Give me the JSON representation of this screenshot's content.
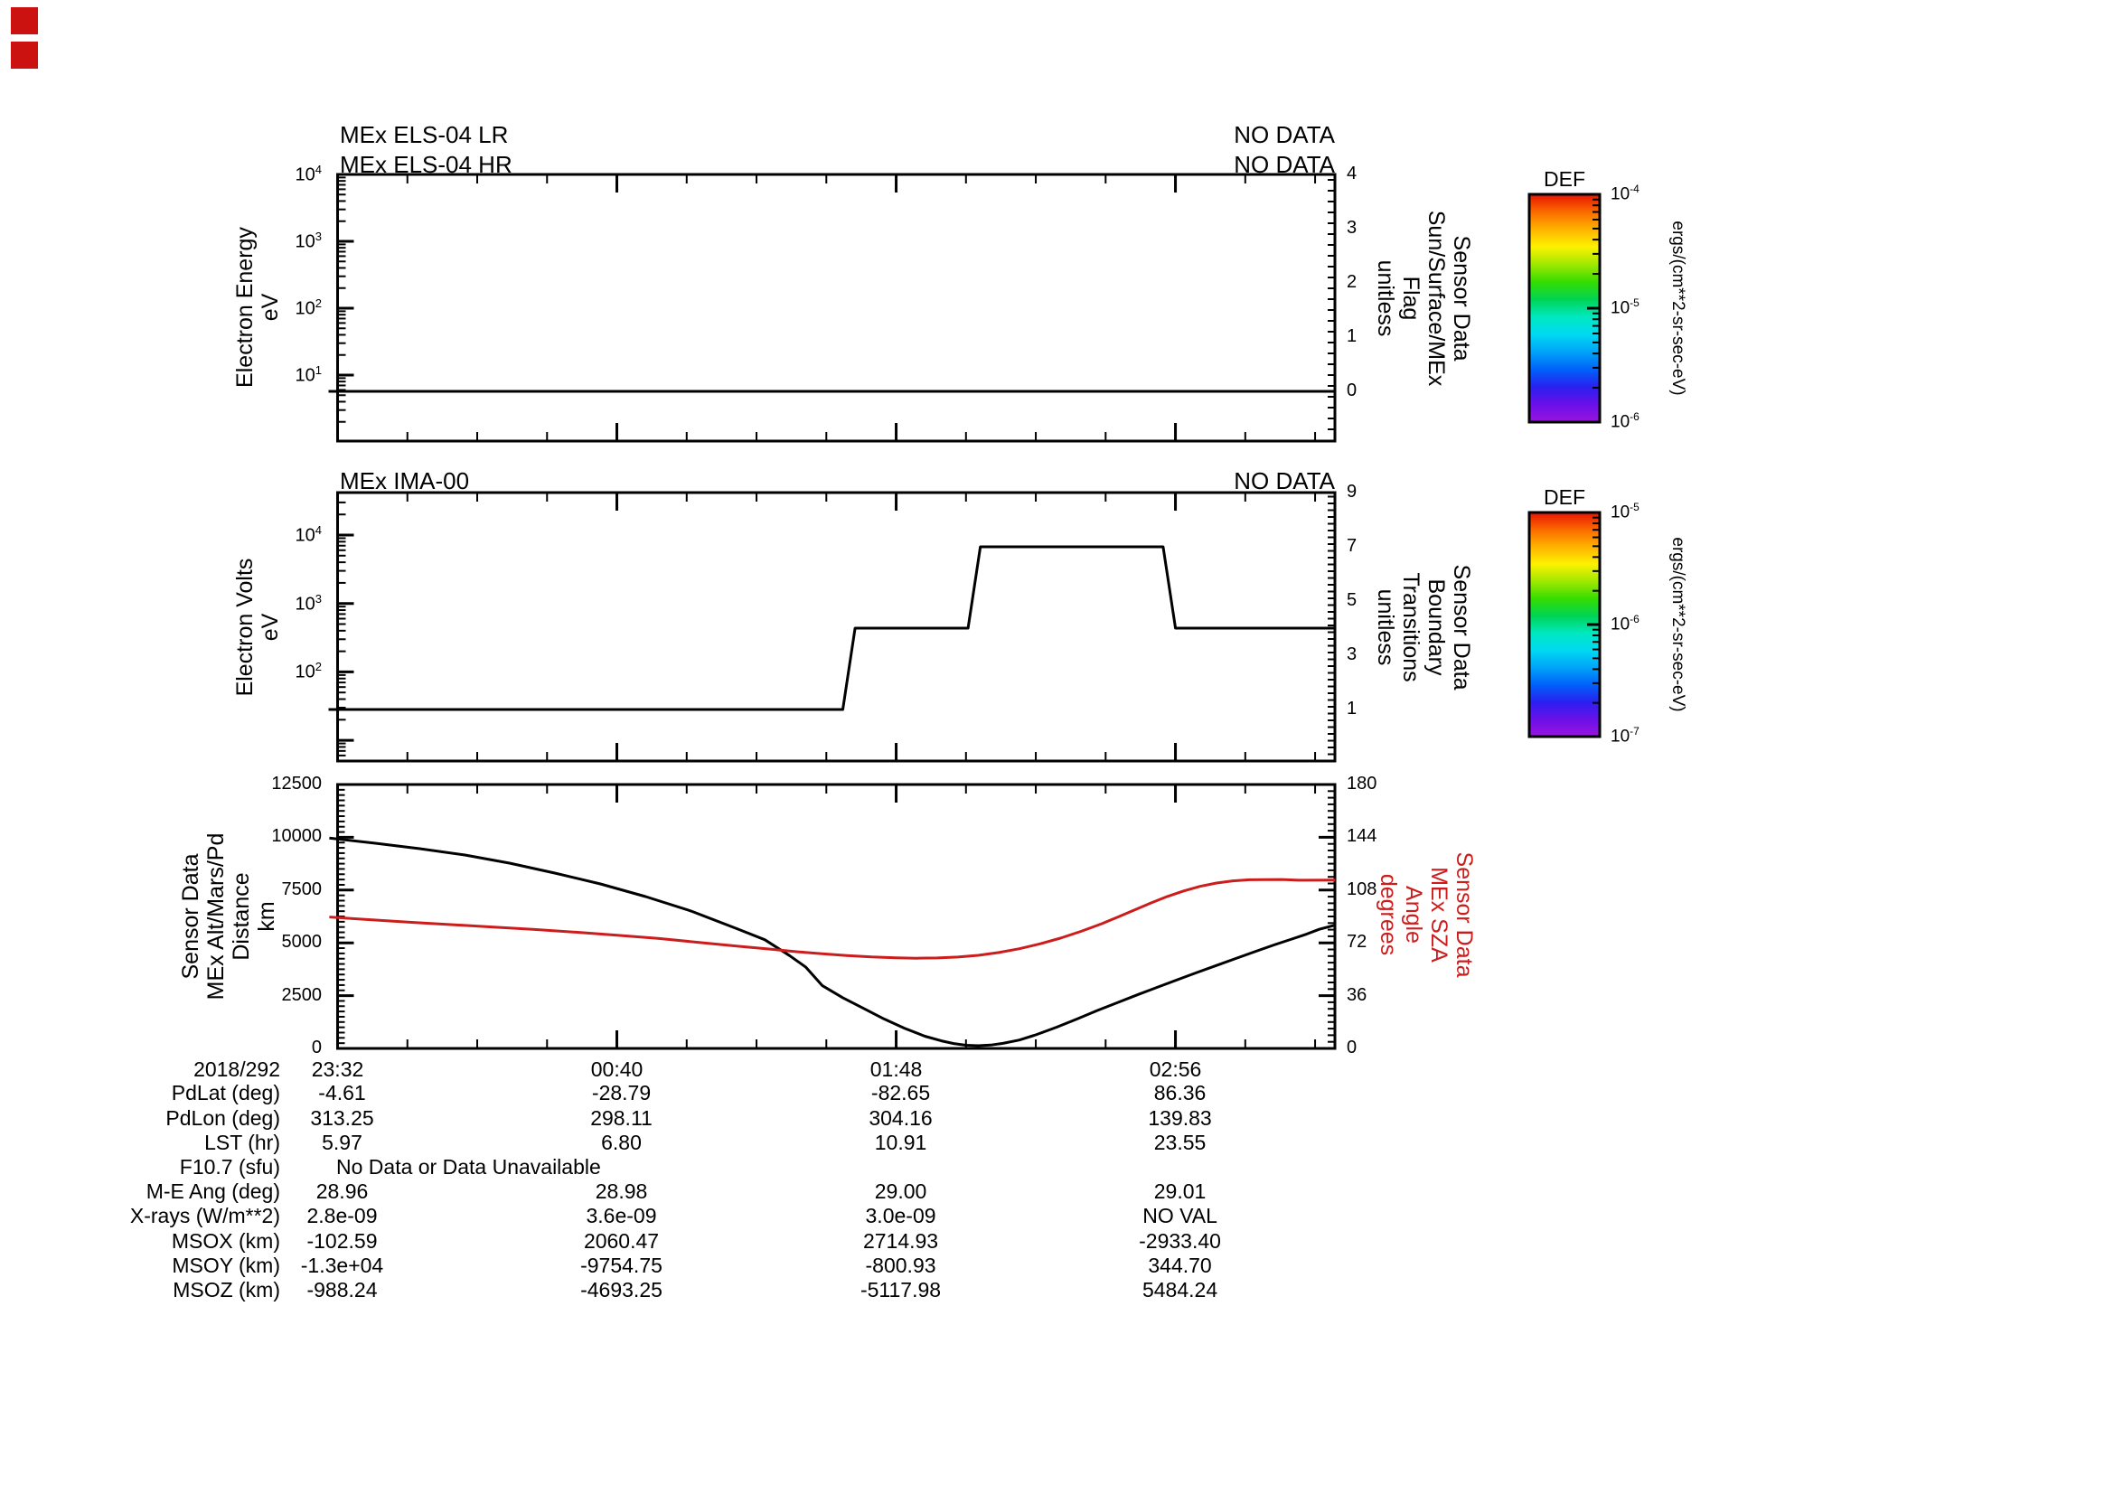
{
  "panels": {
    "top": {
      "titles": [
        "MEx ELS-04 LR",
        "MEx ELS-04 HR"
      ],
      "no_data": [
        "NO DATA",
        "NO DATA"
      ],
      "left_axis_label_lines": [
        "Electron Energy",
        "eV"
      ],
      "right_axis_label_lines": [
        "Sensor Data",
        "Sun/Surface/MEx",
        "Flag",
        "unitless"
      ],
      "left_tick_exponents": [
        "4",
        "3",
        "2",
        "1"
      ],
      "right_tick_labels": [
        "4",
        "3",
        "2",
        "1",
        "0"
      ]
    },
    "middle": {
      "title": "MEx IMA-00",
      "no_data": "NO DATA",
      "left_axis_label_lines": [
        "Electron Volts",
        "eV"
      ],
      "right_axis_label_lines": [
        "Sensor Data",
        "Boundary",
        "Transitions",
        "unitless"
      ],
      "left_tick_exponents": [
        "4",
        "3",
        "2"
      ],
      "right_tick_labels": [
        "9",
        "7",
        "5",
        "3",
        "1"
      ]
    },
    "bottom": {
      "left_axis_label_lines": [
        "Sensor Data",
        "MEx Alt/Mars/Pd",
        "Distance",
        "km"
      ],
      "right_axis_label_lines": [
        "Sensor Data",
        "MEx SZA",
        "Angle",
        "degrees"
      ],
      "left_tick_labels": [
        "12500",
        "10000",
        "7500",
        "5000",
        "2500",
        "0"
      ],
      "right_tick_labels": [
        "180",
        "144",
        "108",
        "72",
        "36",
        "0"
      ],
      "time_labels": [
        "23:32",
        "00:40",
        "01:48",
        "02:56"
      ],
      "date_label": "2018/292"
    }
  },
  "colorbars": [
    {
      "title": "DEF",
      "tick_exponents": [
        "-4",
        "-5",
        "-6"
      ],
      "unit": "ergs/(cm**2-sr-sec-eV)"
    },
    {
      "title": "DEF",
      "tick_exponents": [
        "-5",
        "-6",
        "-7"
      ],
      "unit": "ergs/(cm**2-sr-sec-eV)"
    }
  ],
  "table": {
    "date": "2018/292",
    "times": [
      "23:32",
      "00:40",
      "01:48",
      "02:56"
    ],
    "rows": [
      {
        "label": "PdLat (deg)",
        "values": [
          "-4.61",
          "-28.79",
          "-82.65",
          "86.36"
        ]
      },
      {
        "label": "PdLon (deg)",
        "values": [
          "313.25",
          "298.11",
          "304.16",
          "139.83"
        ]
      },
      {
        "label": "LST (hr)",
        "values": [
          "5.97",
          "6.80",
          "10.91",
          "23.55"
        ]
      },
      {
        "label": "F10.7 (sfu)",
        "merged": "No Data or Data Unavailable"
      },
      {
        "label": "M-E Ang (deg)",
        "values": [
          "28.96",
          "28.98",
          "29.00",
          "29.01"
        ]
      },
      {
        "label": "X-rays (W/m**2)",
        "values": [
          "2.8e-09",
          "3.6e-09",
          "3.0e-09",
          "NO VAL"
        ]
      },
      {
        "label": "MSOX (km)",
        "values": [
          "-102.59",
          "2060.47",
          "2714.93",
          "-2933.40"
        ]
      },
      {
        "label": "MSOY (km)",
        "values": [
          "-1.3e+04",
          "-9754.75",
          "-800.93",
          "344.70"
        ]
      },
      {
        "label": "MSOZ (km)",
        "values": [
          "-988.24",
          "-4693.25",
          "-5117.98",
          "5484.24"
        ]
      }
    ]
  },
  "colors": {
    "curve": "#000000",
    "red_curve": "#cc1d1d",
    "red_label": "#cc1d1d",
    "rainbow_top_to_bottom": [
      "#e81300",
      "#fa6a00",
      "#ffb300",
      "#fdf200",
      "#a0e800",
      "#35dd00",
      "#00d455",
      "#00e8c0",
      "#00d9f2",
      "#00a3f8",
      "#0061fa",
      "#2a20f0",
      "#6a10e8",
      "#9a14dd"
    ]
  },
  "chart_data": [
    {
      "type": "line",
      "title": "MEx ELS-04 LR / MEx ELS-04 HR (NO DATA)",
      "x_axis": {
        "label": "time (2018/292)",
        "tick_labels": [
          "23:32",
          "00:40",
          "01:48",
          "02:56"
        ],
        "tick_minutes": [
          0,
          68,
          136,
          204
        ],
        "range_minutes": [
          -2.2,
          242.9
        ]
      },
      "left_axis": {
        "label": "Electron Energy (eV)",
        "scale": "log",
        "range": [
          1,
          10000
        ]
      },
      "right_axis": {
        "label": "Sensor Data Sun/Surface/MEx Flag (unitless)",
        "range": [
          -0.92,
          4
        ],
        "ticks": [
          4,
          3,
          2,
          1,
          0
        ]
      },
      "series": [
        {
          "name": "Sun/Surface/MEx Flag",
          "axis": "right",
          "points": [
            [
              -2.2,
              0
            ],
            [
              242.9,
              0
            ]
          ]
        }
      ]
    },
    {
      "type": "line",
      "title": "MEx IMA-00 (NO DATA)",
      "left_axis": {
        "label": "Electron Volts (eV)",
        "scale": "log",
        "range": [
          6,
          38000
        ]
      },
      "right_axis": {
        "label": "Sensor Data Boundary Transitions (unitless)",
        "range": [
          -0.9,
          9
        ],
        "ticks": [
          9,
          7,
          5,
          3,
          1
        ]
      },
      "series": [
        {
          "name": "Boundary Transitions",
          "axis": "right",
          "points": [
            [
              -2.2,
              1
            ],
            [
              123,
              1
            ],
            [
              126,
              4
            ],
            [
              153.5,
              4
            ],
            [
              156.5,
              7
            ],
            [
              201,
              7
            ],
            [
              204,
              4
            ],
            [
              242.9,
              4
            ]
          ]
        }
      ]
    },
    {
      "type": "line",
      "left_axis": {
        "label": "Sensor Data MEx Alt/Mars/Pd Distance (km)",
        "range": [
          0,
          12500
        ],
        "ticks": [
          0,
          2500,
          5000,
          7500,
          10000,
          12500
        ]
      },
      "right_axis": {
        "label": "Sensor Data MEx SZA Angle (degrees)",
        "range": [
          0,
          180
        ],
        "ticks": [
          0,
          36,
          72,
          108,
          144,
          180
        ]
      },
      "series": [
        {
          "name": "MEx Alt/Mars/Pd Distance",
          "axis": "left",
          "points": [
            [
              -2,
              9960
            ],
            [
              9,
              9720
            ],
            [
              20,
              9460
            ],
            [
              31,
              9160
            ],
            [
              42,
              8770
            ],
            [
              53,
              8300
            ],
            [
              64,
              7790
            ],
            [
              75,
              7190
            ],
            [
              86,
              6510
            ],
            [
              97,
              5690
            ],
            [
              104,
              5150
            ],
            [
              110,
              4400
            ],
            [
              114,
              3850
            ],
            [
              118,
              2980
            ],
            [
              123,
              2400
            ],
            [
              128,
              1900
            ],
            [
              133,
              1400
            ],
            [
              138,
              960
            ],
            [
              143,
              580
            ],
            [
              147,
              360
            ],
            [
              150,
              230
            ],
            [
              153,
              150
            ],
            [
              156,
              130
            ],
            [
              159,
              160
            ],
            [
              162,
              240
            ],
            [
              166,
              400
            ],
            [
              170,
              640
            ],
            [
              175,
              1000
            ],
            [
              180,
              1390
            ],
            [
              185,
              1800
            ],
            [
              190,
              2180
            ],
            [
              195,
              2560
            ],
            [
              200,
              2930
            ],
            [
              205,
              3290
            ],
            [
              209,
              3580
            ],
            [
              214,
              3930
            ],
            [
              219,
              4280
            ],
            [
              223,
              4560
            ],
            [
              228,
              4900
            ],
            [
              232,
              5160
            ],
            [
              236,
              5420
            ],
            [
              239,
              5640
            ],
            [
              242.9,
              5840
            ]
          ]
        },
        {
          "name": "MEx SZA Angle",
          "axis": "right",
          "points": [
            [
              -2,
              89.6
            ],
            [
              8,
              87.8
            ],
            [
              18,
              86.0
            ],
            [
              28,
              84.4
            ],
            [
              38,
              82.8
            ],
            [
              48,
              81.1
            ],
            [
              58,
              79.3
            ],
            [
              68,
              77.2
            ],
            [
              78,
              75.0
            ],
            [
              88,
              72.3
            ],
            [
              98,
              69.6
            ],
            [
              105,
              67.8
            ],
            [
              112,
              65.9
            ],
            [
              118,
              64.6
            ],
            [
              124,
              63.4
            ],
            [
              130,
              62.4
            ],
            [
              136,
              61.8
            ],
            [
              141,
              61.5
            ],
            [
              146,
              61.7
            ],
            [
              151,
              62.3
            ],
            [
              156,
              63.5
            ],
            [
              161,
              65.4
            ],
            [
              166,
              68.0
            ],
            [
              171,
              71.3
            ],
            [
              176,
              75.2
            ],
            [
              181,
              79.8
            ],
            [
              186,
              85.0
            ],
            [
              190,
              89.6
            ],
            [
              194,
              94.4
            ],
            [
              198,
              99.2
            ],
            [
              202,
              103.6
            ],
            [
              206,
              107.4
            ],
            [
              210,
              110.5
            ],
            [
              214,
              112.8
            ],
            [
              218,
              114.3
            ],
            [
              222,
              115.0
            ],
            [
              230,
              115.2
            ],
            [
              234,
              114.7
            ],
            [
              242.9,
              114.8
            ]
          ]
        }
      ]
    }
  ]
}
